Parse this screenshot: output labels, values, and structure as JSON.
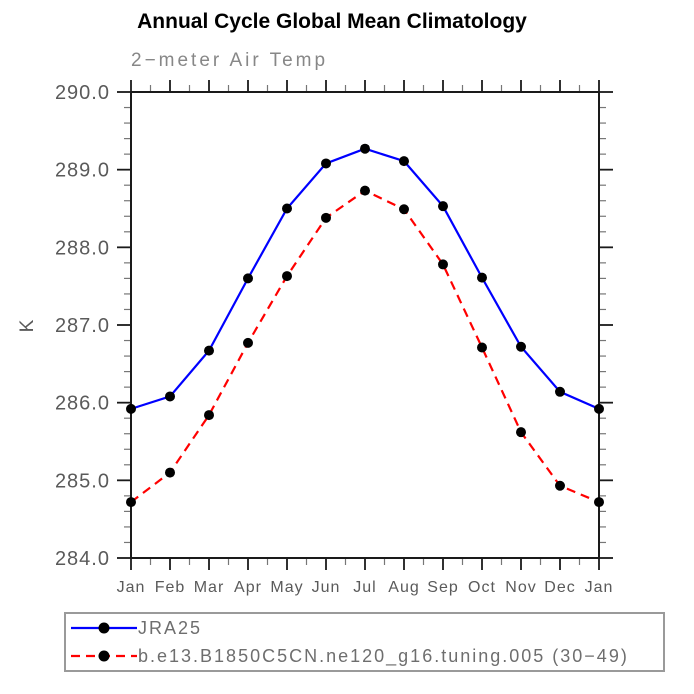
{
  "title": "Annual Cycle Global Mean Climatology",
  "subtitle": "2−meter Air Temp",
  "chart_data": {
    "type": "line",
    "x_categories": [
      "Jan",
      "Feb",
      "Mar",
      "Apr",
      "May",
      "Jun",
      "Jul",
      "Aug",
      "Sep",
      "Oct",
      "Nov",
      "Dec",
      "Jan"
    ],
    "xlabel": "",
    "ylabel": "K",
    "ylim": [
      284.0,
      290.0
    ],
    "ytick_interval": 1.0,
    "ytick_labels": [
      "284.0",
      "285.0",
      "286.0",
      "287.0",
      "288.0",
      "289.0",
      "290.0"
    ],
    "y_minor_interval": 0.2,
    "x_minor_per_interval": 1,
    "grid": false,
    "tick_style": "outward-all-sides",
    "legend_position": "bottom-left-box",
    "series": [
      {
        "name": "JRA25",
        "color": "#0000ff",
        "line_style": "solid",
        "marker": "filled-circle",
        "marker_color": "#000000",
        "values": [
          285.92,
          286.08,
          286.67,
          287.6,
          288.5,
          289.08,
          289.27,
          289.11,
          288.53,
          287.61,
          286.72,
          286.14,
          285.92
        ]
      },
      {
        "name": "b.e13.B1850C5CN.ne120_g16.tuning.005 (30−49)",
        "color": "#ff0000",
        "line_style": "dashed",
        "marker": "filled-circle",
        "marker_color": "#000000",
        "values": [
          284.72,
          285.1,
          285.84,
          286.77,
          287.63,
          288.38,
          288.73,
          288.49,
          287.78,
          286.71,
          285.62,
          284.93,
          284.72
        ]
      }
    ],
    "axis_color": "#1a1a1a",
    "tick_label_color": "#5a5a5a",
    "subtitle_color": "#878787"
  }
}
